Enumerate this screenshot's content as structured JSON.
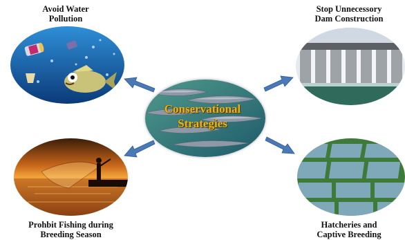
{
  "center": {
    "line1": "Conservational",
    "line2": "Strategies"
  },
  "strategies": {
    "top_left": {
      "line1": "Avoid Water",
      "line2": "Pollution"
    },
    "top_right": {
      "line1": "Stop Unnecessory",
      "line2": "Dam Construction"
    },
    "bottom_left": {
      "line1": "Prohbit Fishing during",
      "line2": "Breeding Season"
    },
    "bottom_right": {
      "line1": "Hatcheries and",
      "line2": "Captive Breeding"
    }
  },
  "colors": {
    "arrow": "#4a79b8",
    "center_text": "#e8b321",
    "water": "#1c5fa8"
  }
}
